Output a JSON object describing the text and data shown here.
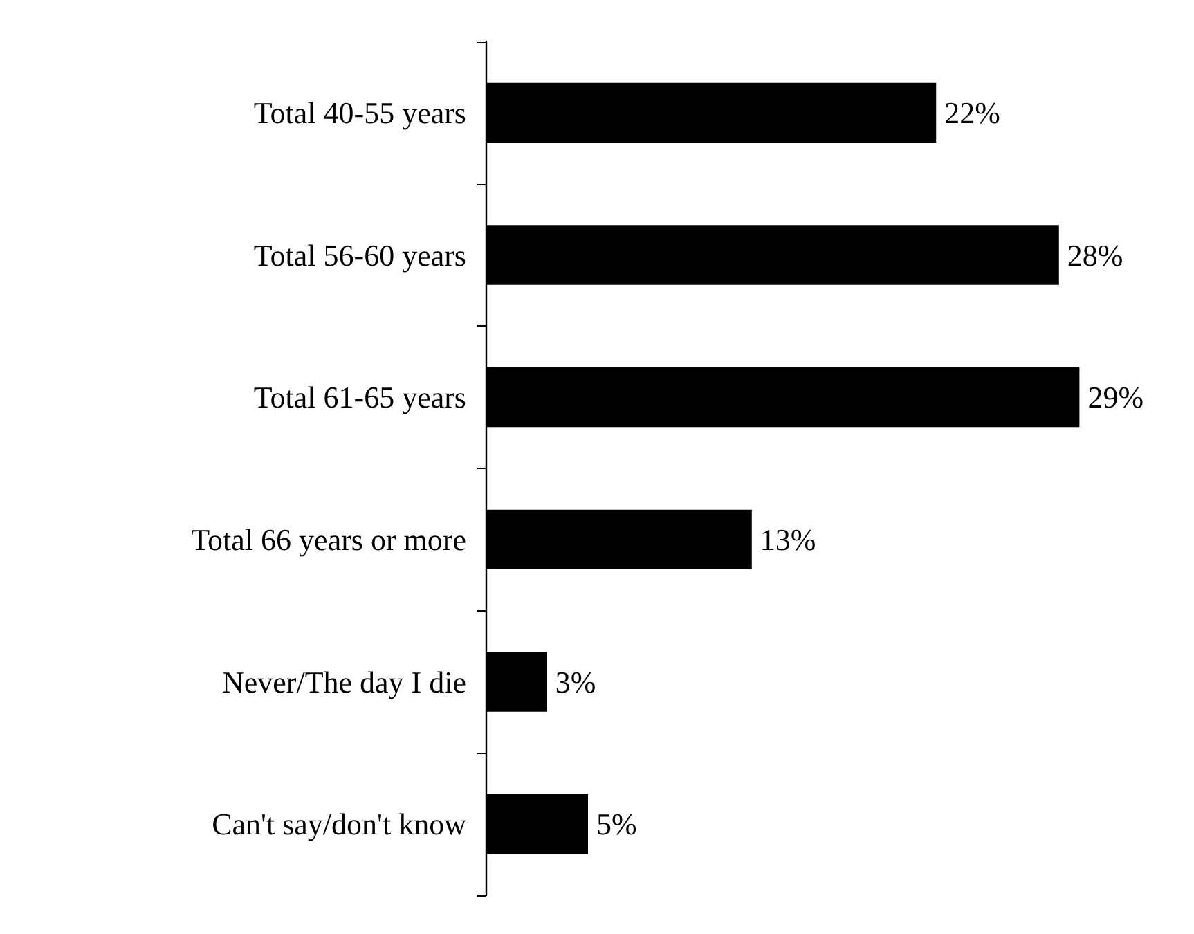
{
  "chart_data": {
    "type": "bar",
    "orientation": "horizontal",
    "categories": [
      "Total 40-55 years",
      "Total 56-60 years",
      "Total 61-65 years",
      "Total 66 years or more",
      "Never/The day I die",
      "Can't say/don't know"
    ],
    "values": [
      22,
      28,
      29,
      13,
      3,
      5
    ],
    "value_labels": [
      "22%",
      "28%",
      "29%",
      "13%",
      "3%",
      "5%"
    ],
    "color": "#000000"
  }
}
